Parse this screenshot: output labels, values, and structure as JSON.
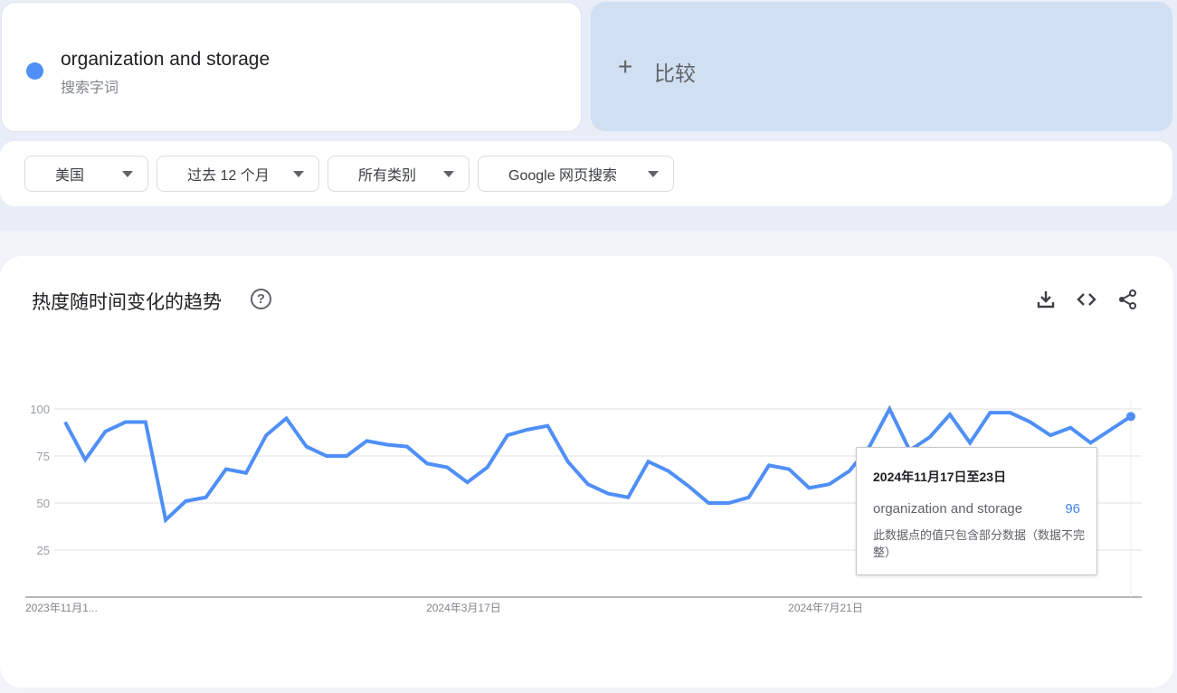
{
  "search_term": {
    "name": "organization and storage",
    "subtitle": "搜索字词",
    "color": "#4f8ff7"
  },
  "compare": {
    "icon": "plus-icon",
    "plus": "+",
    "label": "比较"
  },
  "filters": [
    {
      "label": "美国"
    },
    {
      "label": "过去 12 个月"
    },
    {
      "label": "所有类别"
    },
    {
      "label": "Google 网页搜索"
    }
  ],
  "chart_section": {
    "title": "热度随时间变化的趋势",
    "help": "?",
    "actions": [
      "download-icon",
      "embed-code-icon",
      "share-icon"
    ]
  },
  "tooltip": {
    "date": "2024年11月17日至23日",
    "term": "organization and storage",
    "value": "96",
    "note": "此数据点的值只包含部分数据（数据不完整）"
  },
  "chart_data": {
    "type": "line",
    "x_start": "2023-11-12",
    "x_interval": "weekly",
    "x_tick_labels": [
      {
        "index": 0,
        "label": "2023年11月1..."
      },
      {
        "index": 18,
        "label": "2024年3月17日"
      },
      {
        "index": 36,
        "label": "2024年7月21日"
      }
    ],
    "ylim": [
      0,
      100
    ],
    "y_ticks": [
      25,
      50,
      75,
      100
    ],
    "grid": true,
    "series": [
      {
        "name": "organization and storage",
        "color": "#4f8ff7",
        "values": [
          93,
          73,
          88,
          93,
          93,
          41,
          51,
          53,
          68,
          66,
          86,
          95,
          80,
          75,
          75,
          83,
          81,
          80,
          71,
          69,
          61,
          69,
          86,
          89,
          91,
          72,
          60,
          55,
          53,
          72,
          67,
          59,
          50,
          50,
          53,
          70,
          68,
          58,
          60,
          67,
          80,
          100,
          78,
          85,
          97,
          82,
          98,
          98,
          93,
          86,
          90,
          82,
          89,
          96
        ]
      }
    ]
  }
}
